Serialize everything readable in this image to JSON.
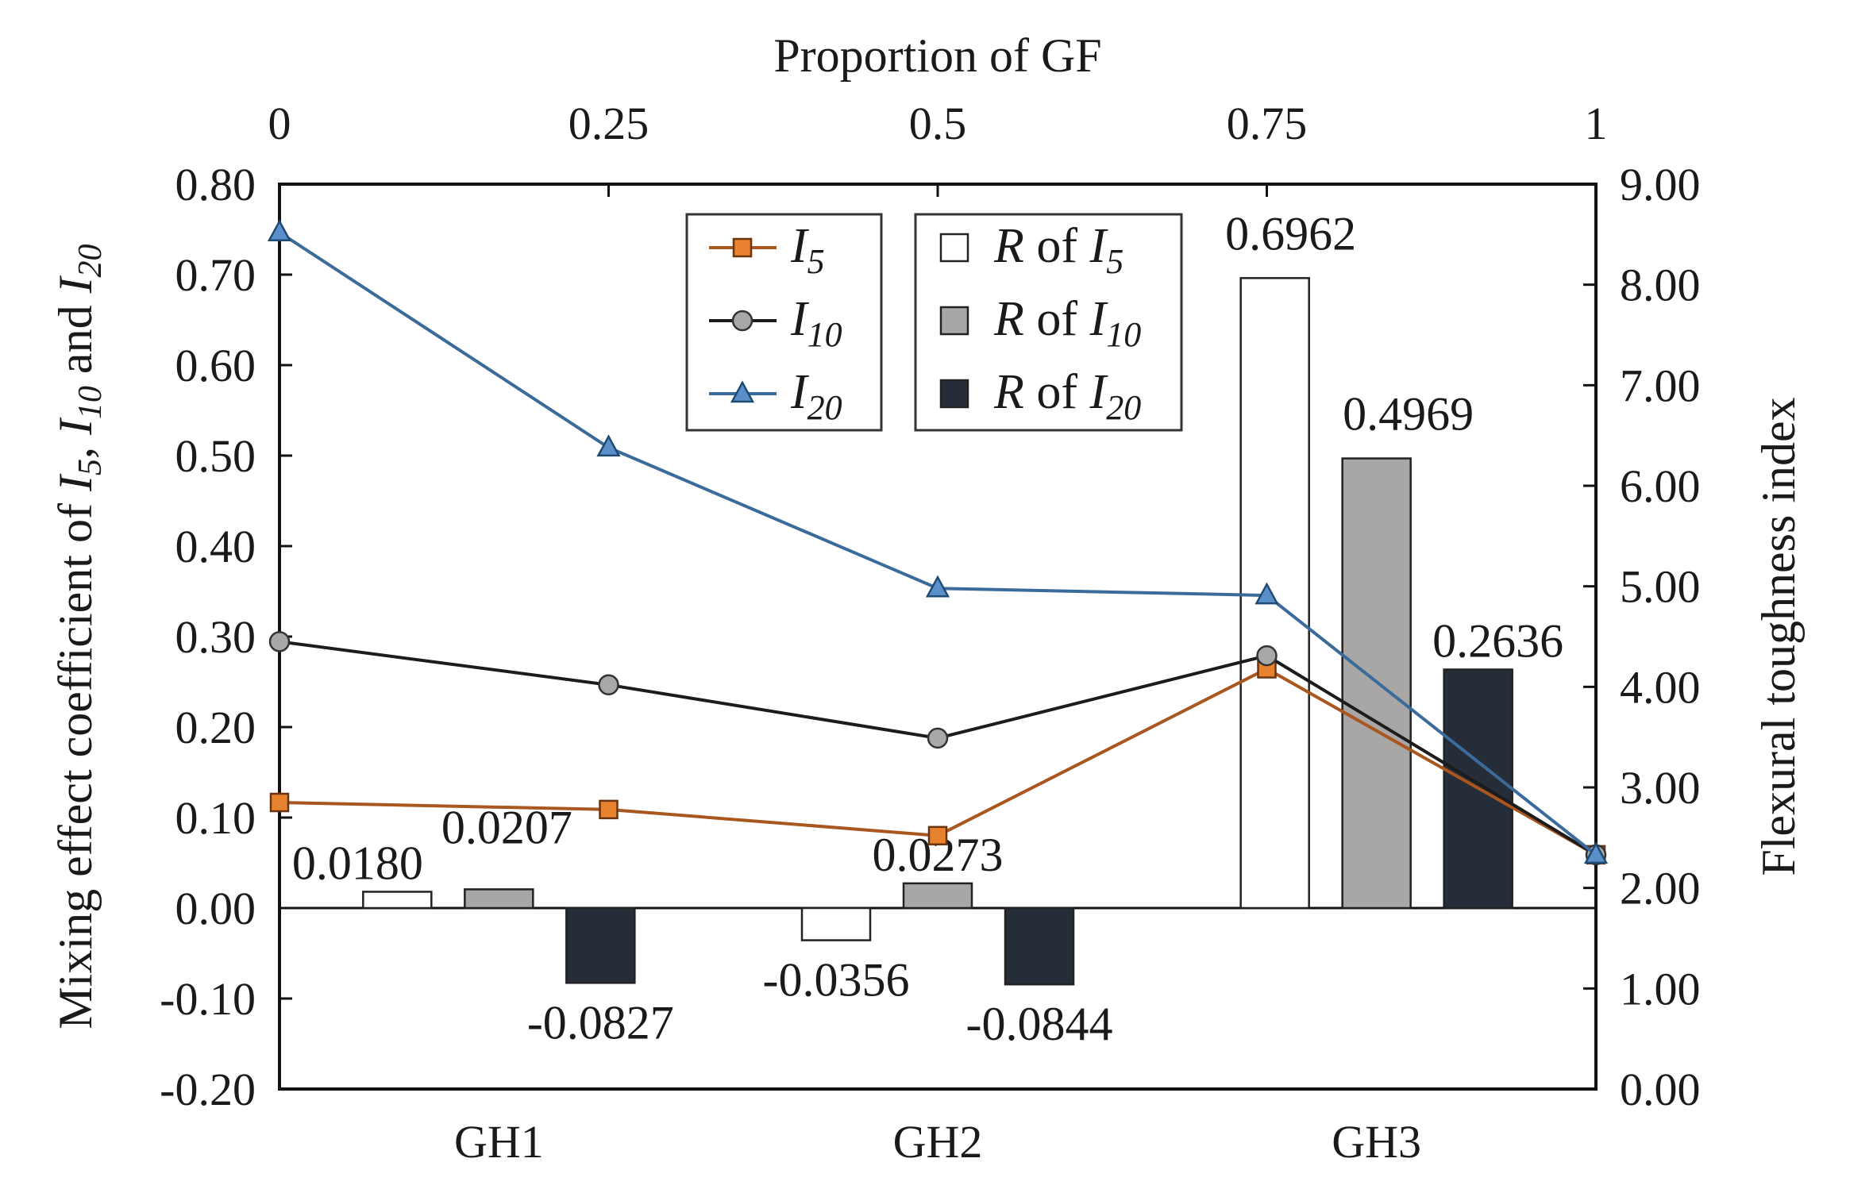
{
  "chart_data": {
    "type": "bar+line",
    "top_axis": {
      "title": "Proportion of GF",
      "ticks": [
        "0",
        "0.25",
        "0.5",
        "0.75",
        "1"
      ],
      "range": [
        0,
        1
      ]
    },
    "left_axis": {
      "title_parts": [
        "Mixing effect coefficient of ",
        "I",
        "5",
        ", ",
        "I",
        "10",
        " and ",
        "I",
        "20"
      ],
      "range": [
        -0.2,
        0.8
      ],
      "ticks": [
        -0.2,
        -0.1,
        0.0,
        0.1,
        0.2,
        0.3,
        0.4,
        0.5,
        0.6,
        0.7,
        0.8
      ],
      "tick_labels": [
        "-0.20",
        "-0.10",
        "0.00",
        "0.10",
        "0.20",
        "0.30",
        "0.40",
        "0.50",
        "0.60",
        "0.70",
        "0.80"
      ]
    },
    "right_axis": {
      "title": "Flexural toughness index",
      "range": [
        0,
        9
      ],
      "ticks": [
        0,
        1,
        2,
        3,
        4,
        5,
        6,
        7,
        8,
        9
      ],
      "tick_labels": [
        "0.00",
        "1.00",
        "2.00",
        "3.00",
        "4.00",
        "5.00",
        "6.00",
        "7.00",
        "8.00",
        "9.00"
      ]
    },
    "groups": [
      "GH1",
      "GH2",
      "GH3"
    ],
    "bar_series": [
      {
        "name": "R of I5",
        "legend": [
          "R",
          " of ",
          "I",
          "5"
        ],
        "color": "#ffffff",
        "values": [
          0.018,
          -0.0356,
          0.6962
        ],
        "labels": [
          "0.0180",
          "-0.0356",
          "0.6962"
        ]
      },
      {
        "name": "R of I10",
        "legend": [
          "R",
          " of ",
          "I",
          "10"
        ],
        "color": "#a9a6a6",
        "values": [
          0.0207,
          0.0273,
          0.4969
        ],
        "labels": [
          "0.0207",
          "0.0273",
          "0.4969"
        ]
      },
      {
        "name": "R of I20",
        "legend": [
          "R",
          " of ",
          "I",
          "20"
        ],
        "color": "#252d38",
        "values": [
          -0.0827,
          -0.0844,
          0.2636
        ],
        "labels": [
          "-0.0827",
          "-0.0844",
          "0.2636"
        ]
      }
    ],
    "line_series": [
      {
        "name": "I5",
        "legend": [
          "I",
          "5"
        ],
        "color": "#a9561f",
        "marker_fill": "#e8822f",
        "marker": "square",
        "x": [
          0,
          0.25,
          0.5,
          0.75,
          1
        ],
        "values": [
          2.85,
          2.78,
          2.52,
          4.18,
          2.33
        ]
      },
      {
        "name": "I10",
        "legend": [
          "I",
          "10"
        ],
        "color": "#1c1c1c",
        "marker_fill": "#a8a8a8",
        "marker": "circle",
        "x": [
          0,
          0.25,
          0.5,
          0.75,
          1
        ],
        "values": [
          4.45,
          4.02,
          3.49,
          4.31,
          2.33
        ]
      },
      {
        "name": "I20",
        "legend": [
          "I",
          "20"
        ],
        "color": "#3a6b9a",
        "marker_fill": "#5b8fc9",
        "marker": "triangle",
        "x": [
          0,
          0.25,
          0.5,
          0.75,
          1
        ],
        "values": [
          8.52,
          6.38,
          4.98,
          4.91,
          2.33
        ]
      }
    ]
  }
}
